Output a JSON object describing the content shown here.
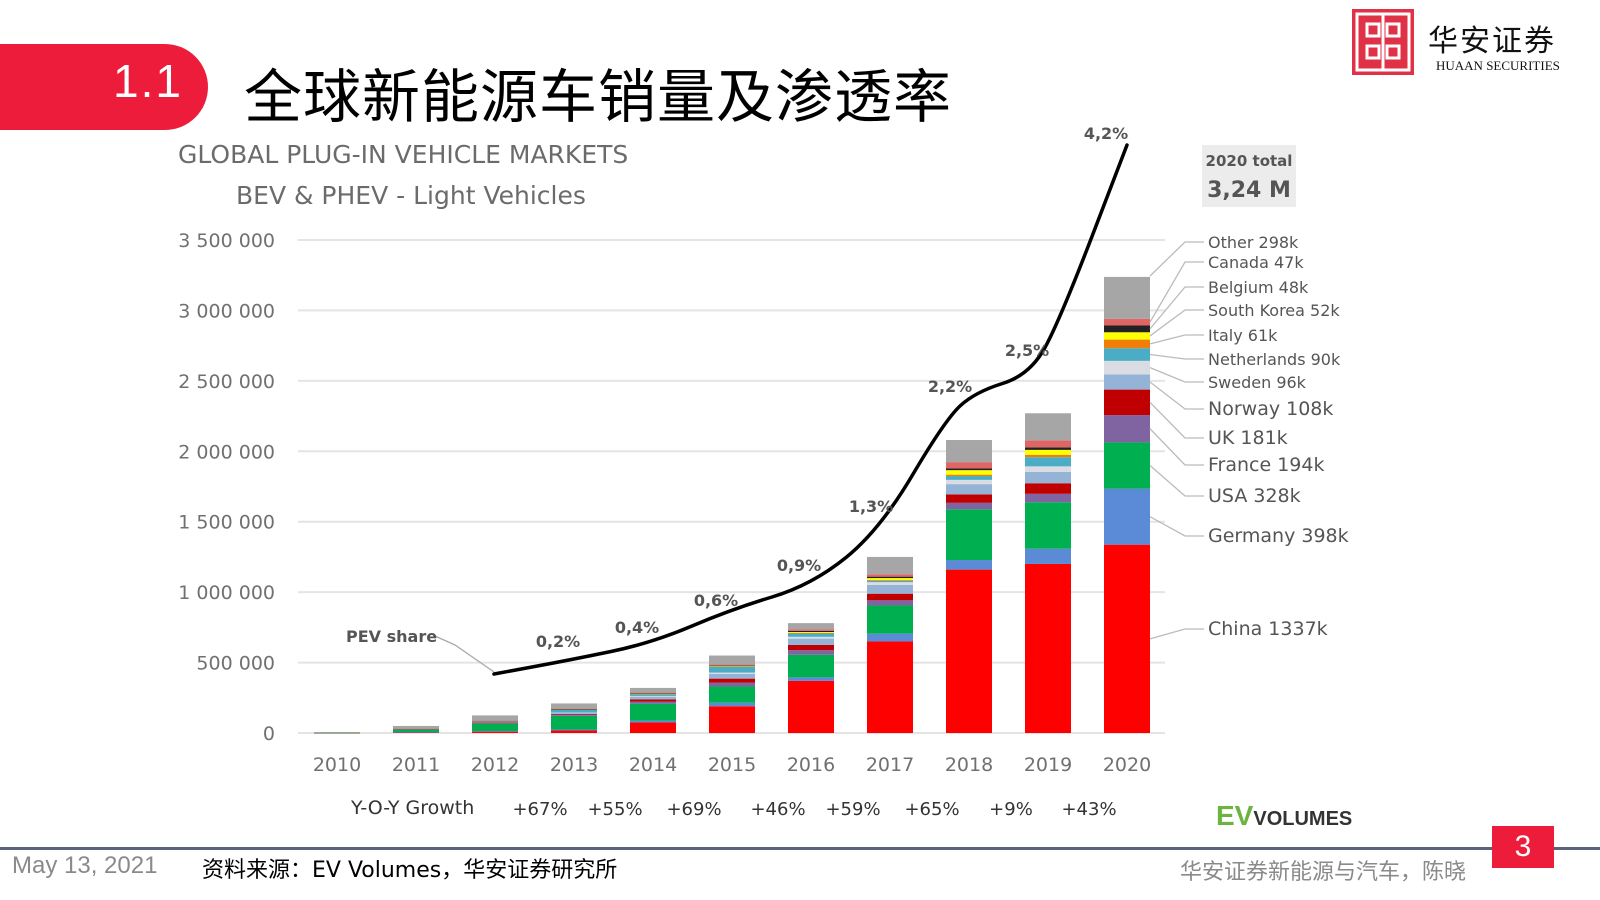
{
  "header": {
    "section_number": "1.1",
    "title": "全球新能源车销量及渗透率",
    "logo_cn": "华安证券",
    "logo_en": "HUAAN SECURITIES"
  },
  "footer": {
    "date": "May 13, 2021",
    "source": "资料来源：EV Volumes，华安证券研究所",
    "team": "华安证券新能源与汽车，陈晓",
    "page_number": "3",
    "ev_logo_ev": "EV",
    "ev_logo_volumes": "VOLUMES"
  },
  "colors": {
    "accent_red": "#ee1c3b",
    "China": "#ff0000",
    "Germany": "#5b8bd6",
    "USA": "#00b050",
    "France": "#8064a2",
    "UK": "#c00000",
    "Norway": "#95b3d7",
    "Sweden": "#d9dde3",
    "Netherlands": "#4bacc6",
    "Italy": "#f07f09",
    "South Korea": "#ffff00",
    "Belgium": "#222222",
    "Canada": "#e06666",
    "Other": "#a6a6a6"
  },
  "chart_data": {
    "type": "bar",
    "stacked": true,
    "title": "GLOBAL PLUG-IN VEHICLE MARKETS",
    "subtitle": "BEV & PHEV - Light Vehicles",
    "xlabel": "",
    "ylabel": "",
    "ylim": [
      0,
      3500000
    ],
    "yticks": [
      0,
      500000,
      1000000,
      1500000,
      2000000,
      2500000,
      3000000,
      3500000
    ],
    "ytick_labels": [
      "0",
      "500 000",
      "1 000 000",
      "1 500 000",
      "2 000 000",
      "2 500 000",
      "3 000 000",
      "3 500 000"
    ],
    "grid": true,
    "categories": [
      "2010",
      "2011",
      "2012",
      "2013",
      "2014",
      "2015",
      "2016",
      "2017",
      "2018",
      "2019",
      "2020"
    ],
    "units": "thousand vehicles (approx.)",
    "series": [
      {
        "name": "China",
        "values": [
          1,
          5,
          10,
          18,
          75,
          190,
          370,
          650,
          1160,
          1200,
          1337
        ]
      },
      {
        "name": "Germany",
        "values": [
          0,
          2,
          4,
          7,
          13,
          25,
          25,
          55,
          68,
          108,
          398
        ]
      },
      {
        "name": "USA",
        "values": [
          1,
          18,
          53,
          97,
          120,
          115,
          160,
          200,
          360,
          330,
          328
        ]
      },
      {
        "name": "France",
        "values": [
          0,
          3,
          6,
          9,
          15,
          27,
          33,
          37,
          46,
          60,
          194
        ]
      },
      {
        "name": "UK",
        "values": [
          0,
          1,
          2,
          4,
          15,
          29,
          37,
          47,
          60,
          75,
          181
        ]
      },
      {
        "name": "Norway",
        "values": [
          0,
          2,
          4,
          8,
          20,
          34,
          45,
          62,
          73,
          80,
          108
        ]
      },
      {
        "name": "Sweden",
        "values": [
          0,
          0,
          1,
          2,
          5,
          9,
          13,
          20,
          30,
          40,
          96
        ]
      },
      {
        "name": "Netherlands",
        "values": [
          0,
          1,
          5,
          23,
          15,
          44,
          25,
          10,
          27,
          65,
          90
        ]
      },
      {
        "name": "Italy",
        "values": [
          0,
          0,
          0,
          1,
          1,
          2,
          3,
          5,
          10,
          17,
          61
        ]
      },
      {
        "name": "South Korea",
        "values": [
          0,
          0,
          0,
          0,
          1,
          3,
          6,
          14,
          32,
          35,
          52
        ]
      },
      {
        "name": "Belgium",
        "values": [
          0,
          0,
          1,
          1,
          2,
          3,
          8,
          10,
          12,
          18,
          48
        ]
      },
      {
        "name": "Canada",
        "values": [
          0,
          1,
          2,
          3,
          5,
          7,
          12,
          17,
          45,
          50,
          47
        ]
      },
      {
        "name": "Other",
        "values": [
          5,
          17,
          37,
          37,
          33,
          62,
          43,
          123,
          157,
          192,
          298
        ]
      }
    ],
    "legend_labels_2020": [
      {
        "name": "Other",
        "label": "Other 298k"
      },
      {
        "name": "Canada",
        "label": "Canada 47k"
      },
      {
        "name": "Belgium",
        "label": "Belgium 48k"
      },
      {
        "name": "South Korea",
        "label": "South Korea 52k"
      },
      {
        "name": "Italy",
        "label": "Italy  61k"
      },
      {
        "name": "Netherlands",
        "label": "Netherlands  90k"
      },
      {
        "name": "Sweden",
        "label": "Sweden  96k"
      },
      {
        "name": "Norway",
        "label": "Norway  108k"
      },
      {
        "name": "UK",
        "label": "UK  181k"
      },
      {
        "name": "France",
        "label": "France  194k"
      },
      {
        "name": "USA",
        "label": "USA 328k"
      },
      {
        "name": "Germany",
        "label": "Germany  398k"
      },
      {
        "name": "China",
        "label": "China  1337k"
      }
    ],
    "pev_share": {
      "label": "PEV share",
      "points": [
        {
          "year": "2013",
          "value": 0.2,
          "label": "0,2%"
        },
        {
          "year": "2014",
          "value": 0.4,
          "label": "0,4%"
        },
        {
          "year": "2015",
          "value": 0.6,
          "label": "0,6%"
        },
        {
          "year": "2016",
          "value": 0.9,
          "label": "0,9%"
        },
        {
          "year": "2017",
          "value": 1.3,
          "label": "1,3%"
        },
        {
          "year": "2018",
          "value": 2.2,
          "label": "2,2%"
        },
        {
          "year": "2019",
          "value": 2.5,
          "label": "2,5%"
        },
        {
          "year": "2020",
          "value": 4.2,
          "label": "4,2%"
        }
      ]
    },
    "total_box": {
      "label": "2020 total",
      "value": "3,24 M"
    },
    "yoy_growth": {
      "label": "Y-O-Y Growth",
      "values": [
        "+67%",
        "+55%",
        "+69%",
        "+46%",
        "+59%",
        "+65%",
        "+9%",
        "+43%"
      ]
    }
  }
}
